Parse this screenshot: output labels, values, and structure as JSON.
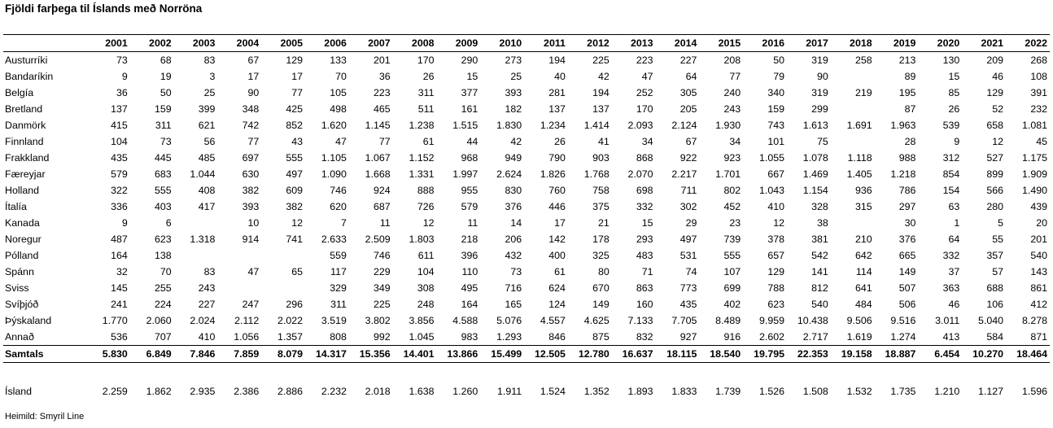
{
  "title": "Fjöldi farþega til Íslands með Norröna",
  "years": [
    "2001",
    "2002",
    "2003",
    "2004",
    "2005",
    "2006",
    "2007",
    "2008",
    "2009",
    "2010",
    "2011",
    "2012",
    "2013",
    "2014",
    "2015",
    "2016",
    "2017",
    "2018",
    "2019",
    "2020",
    "2021",
    "2022"
  ],
  "rows": [
    {
      "label": "Austurríki",
      "values": [
        "73",
        "68",
        "83",
        "67",
        "129",
        "133",
        "201",
        "170",
        "290",
        "273",
        "194",
        "225",
        "223",
        "227",
        "208",
        "50",
        "319",
        "258",
        "213",
        "130",
        "209",
        "268"
      ]
    },
    {
      "label": "Bandaríkin",
      "values": [
        "9",
        "19",
        "3",
        "17",
        "17",
        "70",
        "36",
        "26",
        "15",
        "25",
        "40",
        "42",
        "47",
        "64",
        "77",
        "79",
        "90",
        "",
        "89",
        "15",
        "46",
        "108"
      ]
    },
    {
      "label": "Belgía",
      "values": [
        "36",
        "50",
        "25",
        "90",
        "77",
        "105",
        "223",
        "311",
        "377",
        "393",
        "281",
        "194",
        "252",
        "305",
        "240",
        "340",
        "319",
        "219",
        "195",
        "85",
        "129",
        "391"
      ]
    },
    {
      "label": "Bretland",
      "values": [
        "137",
        "159",
        "399",
        "348",
        "425",
        "498",
        "465",
        "511",
        "161",
        "182",
        "137",
        "137",
        "170",
        "205",
        "243",
        "159",
        "299",
        "",
        "87",
        "26",
        "52",
        "232"
      ]
    },
    {
      "label": "Danmörk",
      "values": [
        "415",
        "311",
        "621",
        "742",
        "852",
        "1.620",
        "1.145",
        "1.238",
        "1.515",
        "1.830",
        "1.234",
        "1.414",
        "2.093",
        "2.124",
        "1.930",
        "743",
        "1.613",
        "1.691",
        "1.963",
        "539",
        "658",
        "1.081"
      ]
    },
    {
      "label": "Finnland",
      "values": [
        "104",
        "73",
        "56",
        "77",
        "43",
        "47",
        "77",
        "61",
        "44",
        "42",
        "26",
        "41",
        "34",
        "67",
        "34",
        "101",
        "75",
        "",
        "28",
        "9",
        "12",
        "45"
      ]
    },
    {
      "label": "Frakkland",
      "values": [
        "435",
        "445",
        "485",
        "697",
        "555",
        "1.105",
        "1.067",
        "1.152",
        "968",
        "949",
        "790",
        "903",
        "868",
        "922",
        "923",
        "1.055",
        "1.078",
        "1.118",
        "988",
        "312",
        "527",
        "1.175"
      ]
    },
    {
      "label": "Færeyjar",
      "values": [
        "579",
        "683",
        "1.044",
        "630",
        "497",
        "1.090",
        "1.668",
        "1.331",
        "1.997",
        "2.624",
        "1.826",
        "1.768",
        "2.070",
        "2.217",
        "1.701",
        "667",
        "1.469",
        "1.405",
        "1.218",
        "854",
        "899",
        "1.909"
      ]
    },
    {
      "label": "Holland",
      "values": [
        "322",
        "555",
        "408",
        "382",
        "609",
        "746",
        "924",
        "888",
        "955",
        "830",
        "760",
        "758",
        "698",
        "711",
        "802",
        "1.043",
        "1.154",
        "936",
        "786",
        "154",
        "566",
        "1.490"
      ]
    },
    {
      "label": "Ítalía",
      "values": [
        "336",
        "403",
        "417",
        "393",
        "382",
        "620",
        "687",
        "726",
        "579",
        "376",
        "446",
        "375",
        "332",
        "302",
        "452",
        "410",
        "328",
        "315",
        "297",
        "63",
        "280",
        "439"
      ]
    },
    {
      "label": "Kanada",
      "values": [
        "9",
        "6",
        "",
        "10",
        "12",
        "7",
        "11",
        "12",
        "11",
        "14",
        "17",
        "21",
        "15",
        "29",
        "23",
        "12",
        "38",
        "",
        "30",
        "1",
        "5",
        "20"
      ]
    },
    {
      "label": "Noregur",
      "values": [
        "487",
        "623",
        "1.318",
        "914",
        "741",
        "2.633",
        "2.509",
        "1.803",
        "218",
        "206",
        "142",
        "178",
        "293",
        "497",
        "739",
        "378",
        "381",
        "210",
        "376",
        "64",
        "55",
        "201"
      ]
    },
    {
      "label": "Pólland",
      "values": [
        "164",
        "138",
        "",
        "",
        "",
        "559",
        "746",
        "611",
        "396",
        "432",
        "400",
        "325",
        "483",
        "531",
        "555",
        "657",
        "542",
        "642",
        "665",
        "332",
        "357",
        "540"
      ]
    },
    {
      "label": "Spánn",
      "values": [
        "32",
        "70",
        "83",
        "47",
        "65",
        "117",
        "229",
        "104",
        "110",
        "73",
        "61",
        "80",
        "71",
        "74",
        "107",
        "129",
        "141",
        "114",
        "149",
        "37",
        "57",
        "143"
      ]
    },
    {
      "label": "Sviss",
      "values": [
        "145",
        "255",
        "243",
        "",
        "",
        "329",
        "349",
        "308",
        "495",
        "716",
        "624",
        "670",
        "863",
        "773",
        "699",
        "788",
        "812",
        "641",
        "507",
        "363",
        "688",
        "861"
      ]
    },
    {
      "label": "Svíþjóð",
      "values": [
        "241",
        "224",
        "227",
        "247",
        "296",
        "311",
        "225",
        "248",
        "164",
        "165",
        "124",
        "149",
        "160",
        "435",
        "402",
        "623",
        "540",
        "484",
        "506",
        "46",
        "106",
        "412"
      ]
    },
    {
      "label": "Þýskaland",
      "values": [
        "1.770",
        "2.060",
        "2.024",
        "2.112",
        "2.022",
        "3.519",
        "3.802",
        "3.856",
        "4.588",
        "5.076",
        "4.557",
        "4.625",
        "7.133",
        "7.705",
        "8.489",
        "9.959",
        "10.438",
        "9.506",
        "9.516",
        "3.011",
        "5.040",
        "8.278"
      ]
    },
    {
      "label": "Annað",
      "values": [
        "536",
        "707",
        "410",
        "1.056",
        "1.357",
        "808",
        "992",
        "1.045",
        "983",
        "1.293",
        "846",
        "875",
        "832",
        "927",
        "916",
        "2.602",
        "2.717",
        "1.619",
        "1.274",
        "413",
        "584",
        "871"
      ]
    }
  ],
  "total": {
    "label": "Samtals",
    "values": [
      "5.830",
      "6.849",
      "7.846",
      "7.859",
      "8.079",
      "14.317",
      "15.356",
      "14.401",
      "13.866",
      "15.499",
      "12.505",
      "12.780",
      "16.637",
      "18.115",
      "18.540",
      "19.795",
      "22.353",
      "19.158",
      "18.887",
      "6.454",
      "10.270",
      "18.464"
    ]
  },
  "iceland": {
    "label": "Ísland",
    "values": [
      "2.259",
      "1.862",
      "2.935",
      "2.386",
      "2.886",
      "2.232",
      "2.018",
      "1.638",
      "1.260",
      "1.911",
      "1.524",
      "1.352",
      "1.893",
      "1.833",
      "1.739",
      "1.526",
      "1.508",
      "1.532",
      "1.735",
      "1.210",
      "1.127",
      "1.596"
    ]
  },
  "source": "Heimild: Smyril Line"
}
